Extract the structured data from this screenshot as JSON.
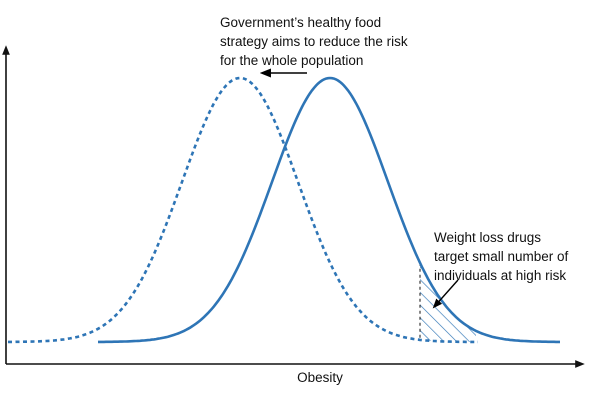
{
  "annotations": {
    "population_strategy": {
      "lines": [
        "Government’s healthy food",
        "strategy aims to reduce the risk",
        "for the whole population"
      ]
    },
    "high_risk_strategy": {
      "lines": [
        "Weight loss drugs",
        "target small number of",
        "individuals at high risk"
      ]
    }
  },
  "axis": {
    "x_label": "Obesity"
  },
  "colors": {
    "curve": "#2e75b6",
    "axis": "#111111",
    "arrow": "#000000",
    "hatch": "#2e75b6"
  }
}
